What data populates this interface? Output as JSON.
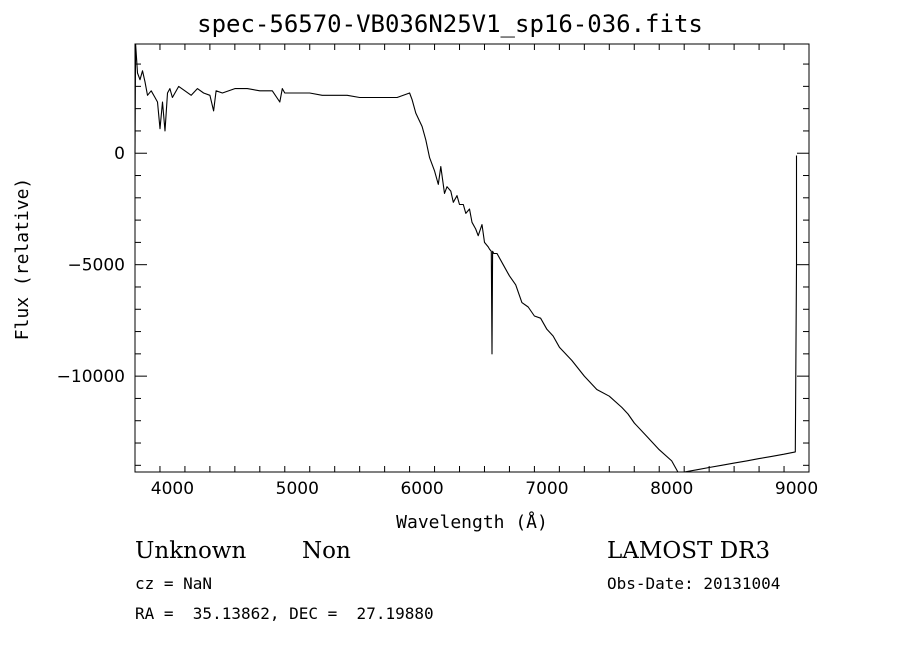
{
  "chart_data": {
    "type": "line",
    "title": "spec-56570-VB036N25V1_sp16-036.fits",
    "xlabel": "Wavelength (Å)",
    "ylabel": "Flux (relative)",
    "xlim": [
      3700,
      9100
    ],
    "ylim": [
      -14300,
      4900
    ],
    "x_ticks": [
      4000,
      5000,
      6000,
      7000,
      8000,
      9000
    ],
    "y_ticks": [
      0,
      -5000,
      -10000
    ],
    "grid": false,
    "legend": "none",
    "series": [
      {
        "x": [
          3700,
          3705,
          3720,
          3740,
          3760,
          3780,
          3800,
          3830,
          3860,
          3880,
          3900,
          3920,
          3940,
          3960,
          3980,
          4000,
          4050,
          4100,
          4150,
          4200,
          4250,
          4300,
          4330,
          4350,
          4400,
          4500,
          4600,
          4700,
          4800,
          4860,
          4880,
          4900,
          5000,
          5100,
          5200,
          5300,
          5400,
          5500,
          5600,
          5700,
          5800,
          5900,
          5920,
          5950,
          6000,
          6030,
          6060,
          6100,
          6130,
          6150,
          6180,
          6200,
          6230,
          6250,
          6280,
          6300,
          6330,
          6350,
          6380,
          6400,
          6430,
          6450,
          6480,
          6500,
          6530,
          6540,
          6555,
          6560,
          6565,
          6575,
          6600,
          6650,
          6700,
          6750,
          6800,
          6850,
          6900,
          6950,
          7000,
          7050,
          7100,
          7200,
          7300,
          7400,
          7500,
          7600,
          7650,
          7700,
          7800,
          7900,
          8000,
          8050,
          8100,
          8200,
          8300,
          8400,
          8500,
          8600,
          8700,
          8800,
          8900,
          8990,
          9000,
          9000,
          9000
        ],
        "y": [
          0,
          4900,
          3600,
          3300,
          3700,
          3200,
          2600,
          2800,
          2500,
          2300,
          1100,
          2300,
          1000,
          2700,
          2900,
          2500,
          3000,
          2800,
          2600,
          2900,
          2700,
          2600,
          1900,
          2800,
          2700,
          2900,
          2900,
          2800,
          2800,
          2300,
          2900,
          2700,
          2700,
          2700,
          2600,
          2600,
          2600,
          2500,
          2500,
          2500,
          2500,
          2700,
          2400,
          1800,
          1200,
          600,
          -200,
          -800,
          -1400,
          -600,
          -1800,
          -1500,
          -1700,
          -2200,
          -1900,
          -2300,
          -2300,
          -2700,
          -2500,
          -3100,
          -3400,
          -3700,
          -3200,
          -4000,
          -4200,
          -4300,
          -4400,
          -9000,
          -4400,
          -4500,
          -4500,
          -5000,
          -5500,
          -5900,
          -6700,
          -6900,
          -7300,
          -7400,
          -7900,
          -8200,
          -8700,
          -9300,
          -10000,
          -10600,
          -10900,
          -11400,
          -11700,
          -12100,
          -12700,
          -13300,
          -13800,
          -14300,
          -14300,
          -14200,
          -14100,
          -14000,
          -13900,
          -13800,
          -13700,
          -13600,
          -13500,
          -13400,
          -5000,
          -3500,
          -100
        ]
      }
    ]
  },
  "info": {
    "obj_class": "Unknown",
    "obj_subclass": "Non",
    "survey": "LAMOST DR3",
    "cz": "cz = NaN",
    "obs_date": "Obs-Date: 20131004",
    "radec": "RA =  35.13862, DEC =  27.19880"
  }
}
